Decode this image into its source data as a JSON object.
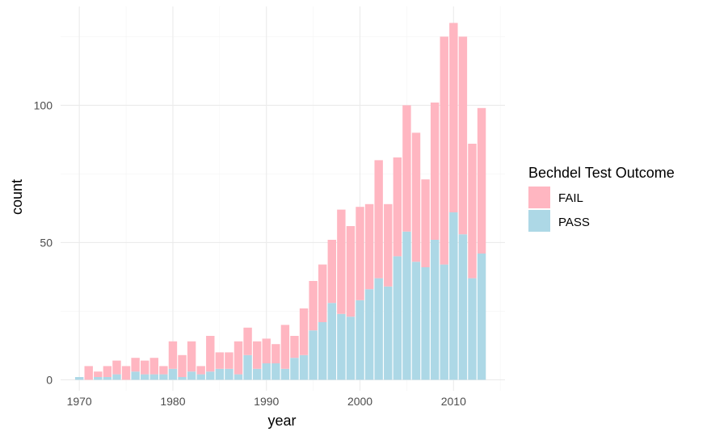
{
  "chart_data": {
    "type": "bar",
    "stacked": true,
    "title": "",
    "xlabel": "year",
    "ylabel": "count",
    "x_ticks": [
      1970,
      1980,
      1990,
      2000,
      2010
    ],
    "y_ticks": [
      0,
      50,
      100
    ],
    "xlim": [
      1968,
      2015.5
    ],
    "ylim": [
      -4,
      136
    ],
    "grid": true,
    "legend": {
      "title": "Bechdel Test Outcome",
      "position": "right"
    },
    "x": [
      1970,
      1971,
      1972,
      1973,
      1974,
      1975,
      1976,
      1977,
      1978,
      1979,
      1980,
      1981,
      1982,
      1983,
      1984,
      1985,
      1986,
      1987,
      1988,
      1989,
      1990,
      1991,
      1992,
      1993,
      1994,
      1995,
      1996,
      1997,
      1998,
      1999,
      2000,
      2001,
      2002,
      2003,
      2004,
      2005,
      2006,
      2007,
      2008,
      2009,
      2010,
      2011,
      2012,
      2013
    ],
    "series": [
      {
        "name": "PASS",
        "color": "#add8e6",
        "values": [
          1,
          0,
          1,
          1,
          2,
          0,
          3,
          2,
          2,
          2,
          4,
          1,
          3,
          2,
          3,
          4,
          4,
          2,
          9,
          4,
          6,
          6,
          4,
          8,
          9,
          18,
          21,
          28,
          24,
          23,
          29,
          33,
          37,
          34,
          45,
          54,
          43,
          41,
          51,
          42,
          61,
          53,
          37,
          46
        ]
      },
      {
        "name": "FAIL",
        "color": "#ffb6c1",
        "values": [
          0,
          5,
          2,
          4,
          5,
          5,
          5,
          5,
          6,
          3,
          10,
          8,
          11,
          3,
          13,
          6,
          6,
          12,
          10,
          10,
          9,
          7,
          16,
          8,
          17,
          18,
          21,
          23,
          38,
          33,
          34,
          31,
          43,
          30,
          36,
          46,
          47,
          32,
          50,
          83,
          69,
          72,
          49,
          53
        ]
      }
    ]
  }
}
